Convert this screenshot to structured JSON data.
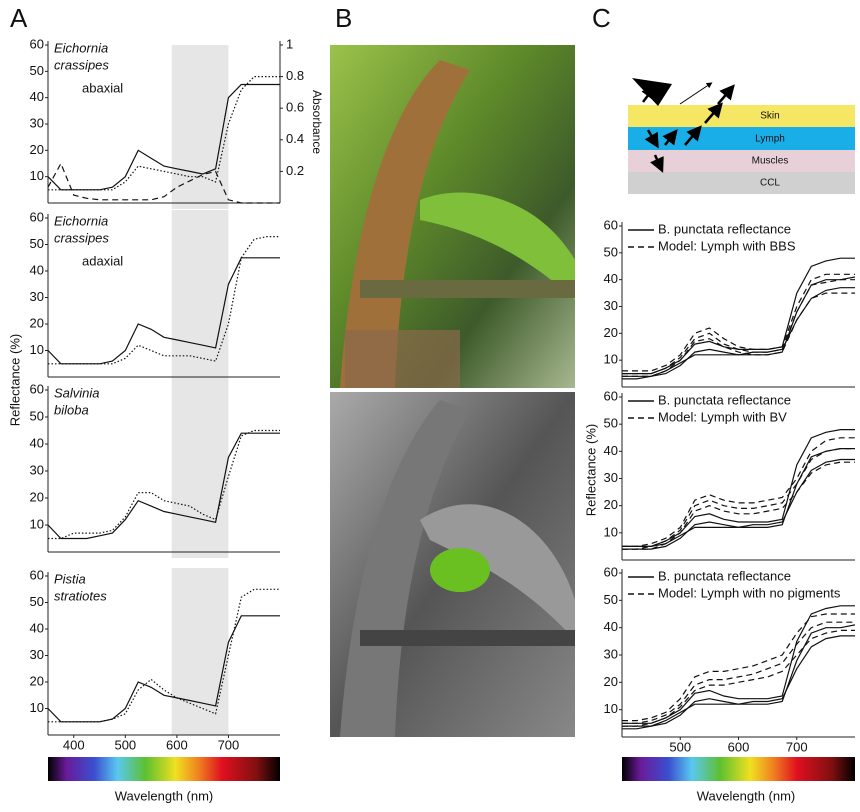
{
  "figure": {
    "panel_labels": [
      "A",
      "B",
      "C"
    ],
    "diagram": {
      "layers": [
        "Skin",
        "Lymph",
        "Muscles",
        "CCL"
      ]
    }
  },
  "chart_data": [
    {
      "type": "line",
      "species": [
        "Eichornia",
        "crassipes"
      ],
      "surface": "abaxial",
      "xlim": [
        350,
        800
      ],
      "ylim": [
        0,
        60
      ],
      "yticks": [
        10,
        20,
        30,
        40,
        50,
        60
      ],
      "y2lim": [
        0,
        1
      ],
      "y2ticks": [
        0.2,
        0.4,
        0.6,
        0.8,
        1
      ],
      "y2label": "Absorbance",
      "highlight": [
        590,
        700
      ],
      "x": [
        350,
        375,
        400,
        425,
        450,
        475,
        500,
        525,
        550,
        575,
        600,
        625,
        650,
        675,
        700,
        725,
        750,
        775,
        800
      ],
      "series": [
        {
          "color": "#111",
          "dash": "solid",
          "values": [
            10,
            5,
            5,
            5,
            5,
            6,
            10,
            20,
            17,
            14,
            13,
            12,
            11,
            13,
            40,
            45,
            45,
            45,
            45
          ]
        },
        {
          "color": "#111",
          "dash": "dotted",
          "values": [
            5,
            5,
            5,
            5,
            5,
            5,
            8,
            14,
            13,
            12,
            11,
            10,
            10,
            8,
            30,
            43,
            48,
            48,
            48
          ]
        },
        {
          "color": "#111",
          "dash": "dashed",
          "axis": "y2",
          "values": [
            0.1,
            0.25,
            0.05,
            0.03,
            0.02,
            0.02,
            0.02,
            0.02,
            0.02,
            0.04,
            0.1,
            0.14,
            0.18,
            0.2,
            0.02,
            0,
            0,
            0,
            0
          ]
        }
      ]
    },
    {
      "type": "line",
      "species": [
        "Eichornia",
        "crassipes"
      ],
      "surface": "adaxial",
      "xlim": [
        350,
        800
      ],
      "ylim": [
        0,
        60
      ],
      "yticks": [
        10,
        20,
        30,
        40,
        50,
        60
      ],
      "highlight": [
        590,
        700
      ],
      "ylabel": "Reflectance (%)",
      "x": [
        350,
        375,
        400,
        425,
        450,
        475,
        500,
        525,
        550,
        575,
        600,
        625,
        650,
        675,
        700,
        725,
        750,
        775,
        800
      ],
      "series": [
        {
          "color": "#111",
          "dash": "solid",
          "values": [
            10,
            5,
            5,
            5,
            5,
            6,
            10,
            20,
            18,
            15,
            14,
            13,
            12,
            11,
            35,
            45,
            45,
            45,
            45
          ]
        },
        {
          "color": "#111",
          "dash": "dotted",
          "values": [
            5,
            5,
            5,
            5,
            5,
            5,
            7,
            12,
            10,
            8,
            8,
            8,
            7,
            6,
            20,
            45,
            52,
            53,
            53
          ]
        }
      ]
    },
    {
      "type": "line",
      "species": [
        "Salvinia",
        "biloba"
      ],
      "xlim": [
        350,
        800
      ],
      "ylim": [
        0,
        60
      ],
      "yticks": [
        10,
        20,
        30,
        40,
        50,
        60
      ],
      "highlight": [
        590,
        700
      ],
      "x": [
        350,
        375,
        400,
        425,
        450,
        475,
        500,
        525,
        550,
        575,
        600,
        625,
        650,
        675,
        700,
        725,
        750,
        775,
        800
      ],
      "series": [
        {
          "color": "#111",
          "dash": "solid",
          "values": [
            10,
            5,
            5,
            5,
            6,
            7,
            12,
            19,
            17,
            15,
            14,
            13,
            12,
            11,
            35,
            44,
            44,
            44,
            44
          ]
        },
        {
          "color": "#111",
          "dash": "dotted",
          "values": [
            5,
            5,
            7,
            7,
            7,
            8,
            13,
            22,
            22,
            19,
            18,
            17,
            14,
            12,
            28,
            43,
            45,
            45,
            45
          ]
        }
      ]
    },
    {
      "type": "line",
      "species": [
        "Pistia",
        "stratiotes"
      ],
      "xlim": [
        350,
        800
      ],
      "ylim": [
        0,
        60
      ],
      "yticks": [
        10,
        20,
        30,
        40,
        50,
        60
      ],
      "highlight": [
        590,
        700
      ],
      "xticks": [
        400,
        500,
        600,
        700
      ],
      "xlabel": "Wavelength (nm)",
      "x": [
        350,
        375,
        400,
        425,
        450,
        475,
        500,
        525,
        550,
        575,
        600,
        625,
        650,
        675,
        700,
        725,
        750,
        775,
        800
      ],
      "series": [
        {
          "color": "#111",
          "dash": "solid",
          "values": [
            10,
            5,
            5,
            5,
            5,
            6,
            10,
            20,
            18,
            15,
            14,
            13,
            12,
            11,
            35,
            45,
            45,
            45,
            45
          ]
        },
        {
          "color": "#111",
          "dash": "dotted",
          "values": [
            5,
            5,
            5,
            5,
            5,
            6,
            8,
            17,
            21,
            17,
            14,
            12,
            10,
            8,
            30,
            52,
            55,
            55,
            55
          ]
        }
      ]
    },
    {
      "type": "line",
      "xlim": [
        400,
        800
      ],
      "ylim": [
        0,
        60
      ],
      "yticks": [
        10,
        20,
        30,
        40,
        50,
        60
      ],
      "x": [
        400,
        425,
        450,
        475,
        500,
        525,
        550,
        575,
        600,
        625,
        650,
        675,
        700,
        725,
        750,
        775,
        800
      ],
      "series": [
        {
          "name": "B. punctata reflectance",
          "color": "#111",
          "dash": "solid",
          "values": [
            5,
            5,
            5,
            7,
            10,
            16,
            17,
            15,
            14,
            14,
            14,
            15,
            35,
            45,
            47,
            48,
            48
          ]
        },
        {
          "color": "#111",
          "dash": "solid",
          "values": [
            3,
            3,
            4,
            5,
            8,
            13,
            14,
            13,
            12,
            12,
            12,
            13,
            28,
            38,
            40,
            40,
            41
          ]
        },
        {
          "color": "#111",
          "dash": "solid",
          "values": [
            4,
            4,
            4,
            6,
            9,
            12,
            12,
            12,
            12,
            13,
            13,
            14,
            25,
            33,
            36,
            37,
            37
          ]
        },
        {
          "name": "Model: Lymph with BBS",
          "color": "#111",
          "dash": "dashed",
          "values": [
            6,
            6,
            6,
            8,
            12,
            20,
            22,
            18,
            15,
            14,
            14,
            15,
            30,
            40,
            42,
            42,
            42
          ]
        },
        {
          "color": "#111",
          "dash": "dashed",
          "values": [
            5,
            5,
            5,
            7,
            11,
            18,
            20,
            16,
            14,
            13,
            13,
            14,
            28,
            38,
            39,
            40,
            40
          ]
        },
        {
          "color": "#111",
          "dash": "dashed",
          "values": [
            4,
            4,
            4,
            6,
            10,
            17,
            18,
            15,
            13,
            12,
            12,
            13,
            25,
            33,
            35,
            35,
            35
          ]
        }
      ]
    },
    {
      "type": "line",
      "xlim": [
        400,
        800
      ],
      "ylim": [
        0,
        60
      ],
      "yticks": [
        10,
        20,
        30,
        40,
        50,
        60
      ],
      "ylabel": "Reflectance (%)",
      "x": [
        400,
        425,
        450,
        475,
        500,
        525,
        550,
        575,
        600,
        625,
        650,
        675,
        700,
        725,
        750,
        775,
        800
      ],
      "series": [
        {
          "name": "B. punctata reflectance",
          "color": "#111",
          "dash": "solid",
          "values": [
            5,
            5,
            5,
            7,
            10,
            16,
            17,
            15,
            14,
            14,
            14,
            15,
            35,
            45,
            47,
            48,
            48
          ]
        },
        {
          "color": "#111",
          "dash": "solid",
          "values": [
            4,
            4,
            4,
            5,
            8,
            13,
            14,
            13,
            12,
            12,
            12,
            13,
            28,
            38,
            40,
            41,
            41
          ]
        },
        {
          "color": "#111",
          "dash": "solid",
          "values": [
            5,
            5,
            5,
            6,
            9,
            12,
            12,
            12,
            12,
            13,
            13,
            14,
            25,
            33,
            36,
            37,
            37
          ]
        },
        {
          "name": "Model: Lymph with BV",
          "color": "#111",
          "dash": "dashed",
          "values": [
            5,
            5,
            6,
            8,
            12,
            22,
            24,
            22,
            21,
            21,
            22,
            23,
            30,
            40,
            44,
            45,
            45
          ]
        },
        {
          "color": "#111",
          "dash": "dashed",
          "values": [
            4,
            4,
            5,
            7,
            11,
            20,
            22,
            20,
            19,
            19,
            20,
            21,
            28,
            37,
            40,
            41,
            41
          ]
        },
        {
          "color": "#111",
          "dash": "dashed",
          "values": [
            4,
            4,
            4,
            6,
            10,
            18,
            20,
            18,
            17,
            17,
            18,
            19,
            25,
            32,
            35,
            36,
            36
          ]
        }
      ]
    },
    {
      "type": "line",
      "xlim": [
        400,
        800
      ],
      "ylim": [
        0,
        60
      ],
      "yticks": [
        10,
        20,
        30,
        40,
        50,
        60
      ],
      "xticks": [
        500,
        600,
        700
      ],
      "xlabel": "Wavelength (nm)",
      "x": [
        400,
        425,
        450,
        475,
        500,
        525,
        550,
        575,
        600,
        625,
        650,
        675,
        700,
        725,
        750,
        775,
        800
      ],
      "series": [
        {
          "name": "B. punctata reflectance",
          "color": "#111",
          "dash": "solid",
          "values": [
            5,
            5,
            5,
            7,
            10,
            16,
            17,
            15,
            14,
            14,
            14,
            15,
            35,
            45,
            47,
            48,
            48
          ]
        },
        {
          "color": "#111",
          "dash": "solid",
          "values": [
            3,
            3,
            4,
            5,
            8,
            13,
            14,
            13,
            12,
            12,
            12,
            13,
            28,
            38,
            40,
            40,
            41
          ]
        },
        {
          "color": "#111",
          "dash": "solid",
          "values": [
            4,
            4,
            4,
            6,
            9,
            12,
            12,
            12,
            12,
            13,
            13,
            14,
            25,
            33,
            36,
            37,
            37
          ]
        },
        {
          "name": "Model: Lymph with no pigments",
          "color": "#111",
          "dash": "dashed",
          "values": [
            6,
            6,
            7,
            9,
            14,
            22,
            24,
            24,
            25,
            26,
            28,
            30,
            38,
            44,
            45,
            45,
            45
          ]
        },
        {
          "color": "#111",
          "dash": "dashed",
          "values": [
            5,
            5,
            6,
            8,
            12,
            19,
            21,
            21,
            22,
            23,
            25,
            27,
            34,
            40,
            42,
            42,
            42
          ]
        },
        {
          "color": "#111",
          "dash": "dashed",
          "values": [
            4,
            4,
            5,
            7,
            11,
            17,
            19,
            19,
            20,
            21,
            22,
            24,
            30,
            36,
            38,
            39,
            39
          ]
        }
      ]
    }
  ]
}
